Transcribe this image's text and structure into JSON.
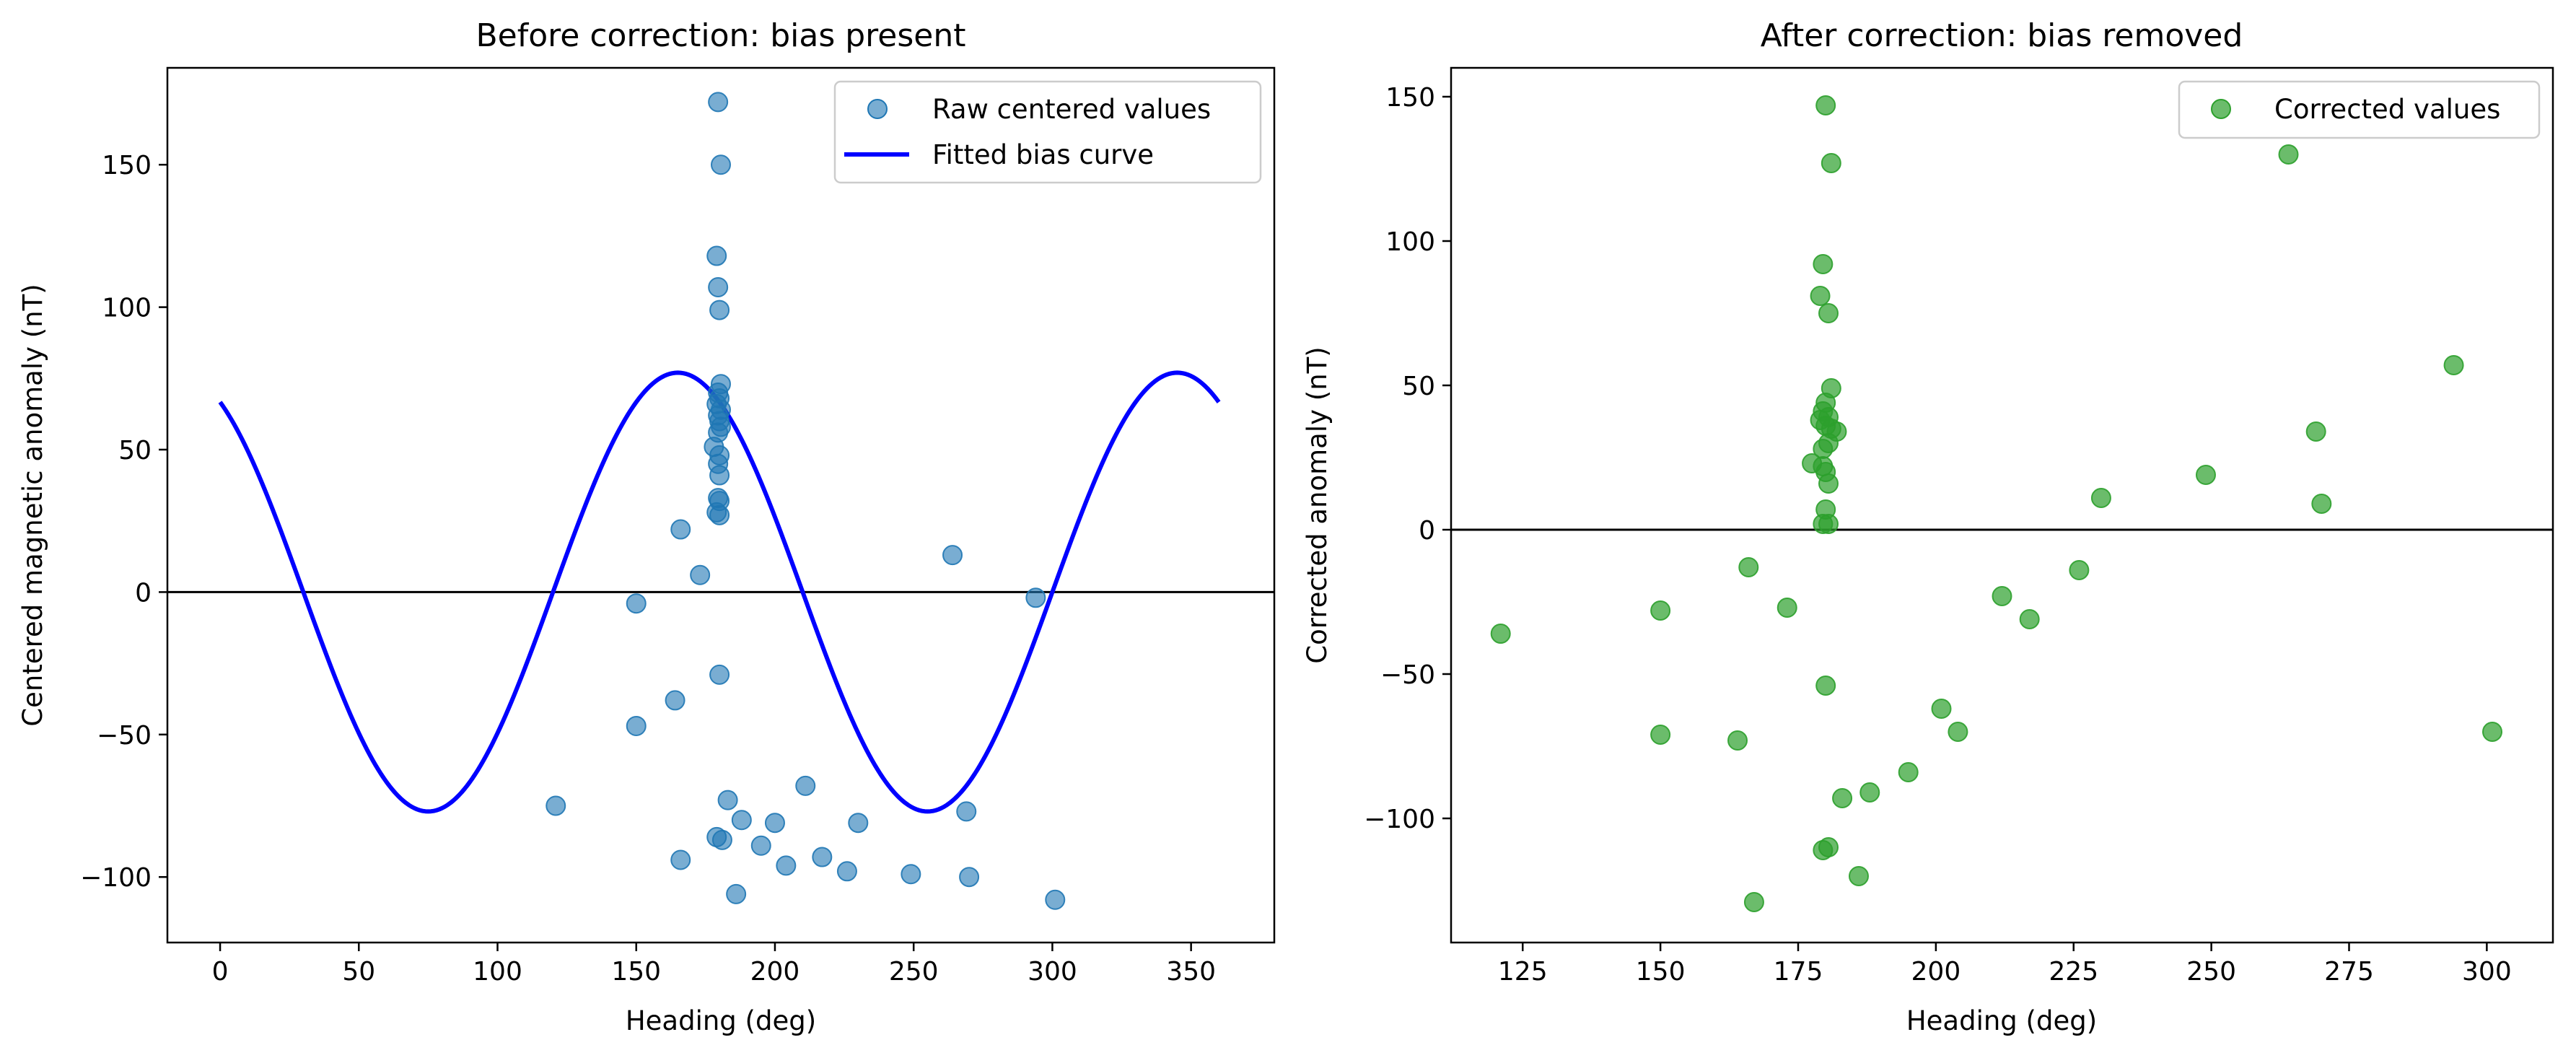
{
  "chart_data": [
    {
      "type": "scatter",
      "title": "Before correction: bias present",
      "xlabel": "Heading (deg)",
      "ylabel": "Centered magnetic anomaly (nT)",
      "xlim": [
        -19,
        380
      ],
      "ylim": [
        -123,
        184
      ],
      "xticks": [
        0,
        50,
        100,
        150,
        200,
        250,
        300,
        350
      ],
      "yticks": [
        -100,
        -50,
        0,
        50,
        100,
        150
      ],
      "hline": 0,
      "legend": "top-right",
      "colors": {
        "points": "#1f77b4",
        "curve": "#0000ff",
        "hline": "#000000"
      },
      "series": [
        {
          "name": "Raw centered values",
          "kind": "scatter",
          "points": [
            [
              179.5,
              172
            ],
            [
              180.5,
              150
            ],
            [
              179,
              118
            ],
            [
              179.5,
              107
            ],
            [
              180,
              99
            ],
            [
              180.5,
              73
            ],
            [
              179.5,
              70
            ],
            [
              180,
              68
            ],
            [
              179,
              66
            ],
            [
              180.5,
              64
            ],
            [
              179.5,
              62
            ],
            [
              180,
              60
            ],
            [
              180.5,
              58
            ],
            [
              179.5,
              56
            ],
            [
              178,
              51
            ],
            [
              180,
              48
            ],
            [
              179.5,
              45
            ],
            [
              180,
              41
            ],
            [
              179.5,
              33
            ],
            [
              180,
              32
            ],
            [
              179,
              28
            ],
            [
              180,
              27
            ],
            [
              166,
              22
            ],
            [
              173,
              6
            ],
            [
              150,
              -4
            ],
            [
              180,
              -29
            ],
            [
              164,
              -38
            ],
            [
              150,
              -47
            ],
            [
              121,
              -75
            ],
            [
              183,
              -73
            ],
            [
              188,
              -80
            ],
            [
              200,
              -81
            ],
            [
              211,
              -68
            ],
            [
              230,
              -81
            ],
            [
              195,
              -89
            ],
            [
              179,
              -86
            ],
            [
              181,
              -87
            ],
            [
              217,
              -93
            ],
            [
              166,
              -94
            ],
            [
              204,
              -96
            ],
            [
              226,
              -98
            ],
            [
              249,
              -99
            ],
            [
              186,
              -106
            ],
            [
              270,
              -100
            ],
            [
              301,
              -108
            ],
            [
              264,
              13
            ],
            [
              294,
              -2
            ],
            [
              269,
              -77
            ]
          ]
        },
        {
          "name": "Fitted bias curve",
          "kind": "line",
          "model": {
            "amplitude": 77,
            "phase_deg": 165,
            "periods_per_rev": 2,
            "x_range": [
              0,
              360
            ]
          }
        }
      ]
    },
    {
      "type": "scatter",
      "title": "After correction: bias removed",
      "xlabel": "Heading (deg)",
      "ylabel": "Corrected anomaly (nT)",
      "xlim": [
        112,
        312
      ],
      "ylim": [
        -143,
        160
      ],
      "xticks": [
        125,
        150,
        175,
        200,
        225,
        250,
        275,
        300
      ],
      "yticks": [
        -100,
        -50,
        0,
        50,
        100,
        150
      ],
      "hline": 0,
      "legend": "top-right",
      "colors": {
        "points": "#2ca02c",
        "hline": "#000000"
      },
      "series": [
        {
          "name": "Corrected values",
          "kind": "scatter",
          "points": [
            [
              180,
              147
            ],
            [
              181,
              127
            ],
            [
              264,
              130
            ],
            [
              179.5,
              92
            ],
            [
              179,
              81
            ],
            [
              180.5,
              75
            ],
            [
              294,
              57
            ],
            [
              181,
              49
            ],
            [
              180,
              44
            ],
            [
              179.5,
              41
            ],
            [
              180.5,
              39
            ],
            [
              179,
              38
            ],
            [
              180,
              36
            ],
            [
              181,
              35
            ],
            [
              182,
              34
            ],
            [
              269,
              34
            ],
            [
              180.5,
              30
            ],
            [
              179.5,
              28
            ],
            [
              177.5,
              23
            ],
            [
              179.5,
              22
            ],
            [
              180,
              20
            ],
            [
              180.5,
              16
            ],
            [
              249,
              19
            ],
            [
              230,
              11
            ],
            [
              270,
              9
            ],
            [
              180,
              7
            ],
            [
              179.5,
              2
            ],
            [
              180.5,
              2
            ],
            [
              166,
              -13
            ],
            [
              226,
              -14
            ],
            [
              212,
              -23
            ],
            [
              173,
              -27
            ],
            [
              217,
              -31
            ],
            [
              150,
              -28
            ],
            [
              121,
              -36
            ],
            [
              180,
              -54
            ],
            [
              201,
              -62
            ],
            [
              204,
              -70
            ],
            [
              150,
              -71
            ],
            [
              164,
              -73
            ],
            [
              301,
              -70
            ],
            [
              195,
              -84
            ],
            [
              188,
              -91
            ],
            [
              183,
              -93
            ],
            [
              180.5,
              -110
            ],
            [
              179.5,
              -111
            ],
            [
              186,
              -120
            ],
            [
              167,
              -129
            ]
          ]
        }
      ]
    }
  ]
}
